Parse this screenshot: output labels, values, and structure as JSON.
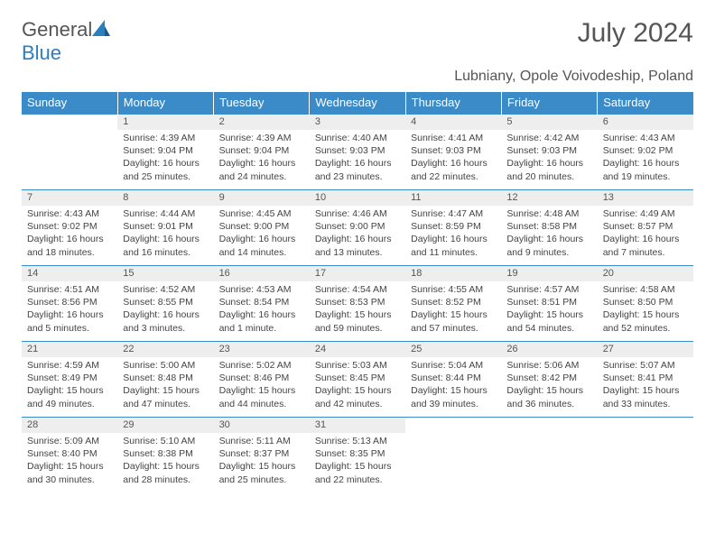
{
  "logo": {
    "text1": "General",
    "text2": "Blue"
  },
  "title": "July 2024",
  "location": "Lubniany, Opole Voivodeship, Poland",
  "colors": {
    "header_bg": "#3b8bc9",
    "header_fg": "#ffffff",
    "daynum_bg": "#eeeeee",
    "row_border": "#3b8bc9",
    "text": "#444444",
    "title_color": "#555555"
  },
  "weekdays": [
    "Sunday",
    "Monday",
    "Tuesday",
    "Wednesday",
    "Thursday",
    "Friday",
    "Saturday"
  ],
  "weeks": [
    [
      null,
      {
        "n": "1",
        "sr": "4:39 AM",
        "ss": "9:04 PM",
        "dl": "16 hours and 25 minutes."
      },
      {
        "n": "2",
        "sr": "4:39 AM",
        "ss": "9:04 PM",
        "dl": "16 hours and 24 minutes."
      },
      {
        "n": "3",
        "sr": "4:40 AM",
        "ss": "9:03 PM",
        "dl": "16 hours and 23 minutes."
      },
      {
        "n": "4",
        "sr": "4:41 AM",
        "ss": "9:03 PM",
        "dl": "16 hours and 22 minutes."
      },
      {
        "n": "5",
        "sr": "4:42 AM",
        "ss": "9:03 PM",
        "dl": "16 hours and 20 minutes."
      },
      {
        "n": "6",
        "sr": "4:43 AM",
        "ss": "9:02 PM",
        "dl": "16 hours and 19 minutes."
      }
    ],
    [
      {
        "n": "7",
        "sr": "4:43 AM",
        "ss": "9:02 PM",
        "dl": "16 hours and 18 minutes."
      },
      {
        "n": "8",
        "sr": "4:44 AM",
        "ss": "9:01 PM",
        "dl": "16 hours and 16 minutes."
      },
      {
        "n": "9",
        "sr": "4:45 AM",
        "ss": "9:00 PM",
        "dl": "16 hours and 14 minutes."
      },
      {
        "n": "10",
        "sr": "4:46 AM",
        "ss": "9:00 PM",
        "dl": "16 hours and 13 minutes."
      },
      {
        "n": "11",
        "sr": "4:47 AM",
        "ss": "8:59 PM",
        "dl": "16 hours and 11 minutes."
      },
      {
        "n": "12",
        "sr": "4:48 AM",
        "ss": "8:58 PM",
        "dl": "16 hours and 9 minutes."
      },
      {
        "n": "13",
        "sr": "4:49 AM",
        "ss": "8:57 PM",
        "dl": "16 hours and 7 minutes."
      }
    ],
    [
      {
        "n": "14",
        "sr": "4:51 AM",
        "ss": "8:56 PM",
        "dl": "16 hours and 5 minutes."
      },
      {
        "n": "15",
        "sr": "4:52 AM",
        "ss": "8:55 PM",
        "dl": "16 hours and 3 minutes."
      },
      {
        "n": "16",
        "sr": "4:53 AM",
        "ss": "8:54 PM",
        "dl": "16 hours and 1 minute."
      },
      {
        "n": "17",
        "sr": "4:54 AM",
        "ss": "8:53 PM",
        "dl": "15 hours and 59 minutes."
      },
      {
        "n": "18",
        "sr": "4:55 AM",
        "ss": "8:52 PM",
        "dl": "15 hours and 57 minutes."
      },
      {
        "n": "19",
        "sr": "4:57 AM",
        "ss": "8:51 PM",
        "dl": "15 hours and 54 minutes."
      },
      {
        "n": "20",
        "sr": "4:58 AM",
        "ss": "8:50 PM",
        "dl": "15 hours and 52 minutes."
      }
    ],
    [
      {
        "n": "21",
        "sr": "4:59 AM",
        "ss": "8:49 PM",
        "dl": "15 hours and 49 minutes."
      },
      {
        "n": "22",
        "sr": "5:00 AM",
        "ss": "8:48 PM",
        "dl": "15 hours and 47 minutes."
      },
      {
        "n": "23",
        "sr": "5:02 AM",
        "ss": "8:46 PM",
        "dl": "15 hours and 44 minutes."
      },
      {
        "n": "24",
        "sr": "5:03 AM",
        "ss": "8:45 PM",
        "dl": "15 hours and 42 minutes."
      },
      {
        "n": "25",
        "sr": "5:04 AM",
        "ss": "8:44 PM",
        "dl": "15 hours and 39 minutes."
      },
      {
        "n": "26",
        "sr": "5:06 AM",
        "ss": "8:42 PM",
        "dl": "15 hours and 36 minutes."
      },
      {
        "n": "27",
        "sr": "5:07 AM",
        "ss": "8:41 PM",
        "dl": "15 hours and 33 minutes."
      }
    ],
    [
      {
        "n": "28",
        "sr": "5:09 AM",
        "ss": "8:40 PM",
        "dl": "15 hours and 30 minutes."
      },
      {
        "n": "29",
        "sr": "5:10 AM",
        "ss": "8:38 PM",
        "dl": "15 hours and 28 minutes."
      },
      {
        "n": "30",
        "sr": "5:11 AM",
        "ss": "8:37 PM",
        "dl": "15 hours and 25 minutes."
      },
      {
        "n": "31",
        "sr": "5:13 AM",
        "ss": "8:35 PM",
        "dl": "15 hours and 22 minutes."
      },
      null,
      null,
      null
    ]
  ],
  "labels": {
    "sunrise": "Sunrise:",
    "sunset": "Sunset:",
    "daylight": "Daylight:"
  }
}
